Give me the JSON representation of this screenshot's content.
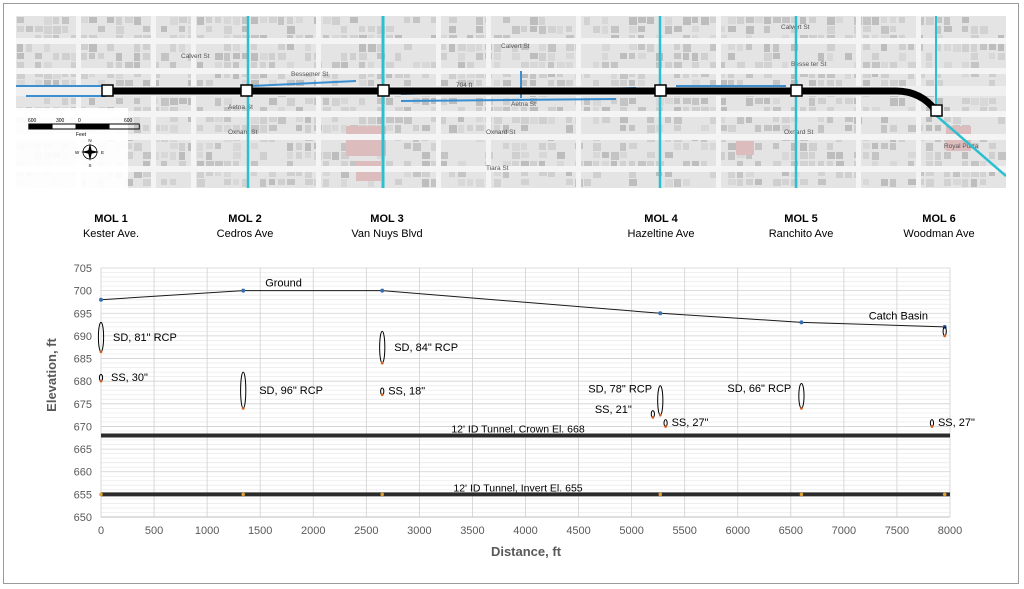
{
  "map": {
    "streets": [
      {
        "name": "Calvert St",
        "pos": "north-west"
      },
      {
        "name": "Calvert St",
        "pos": "north-center"
      },
      {
        "name": "Calvert St",
        "pos": "north-east"
      },
      {
        "name": "Bessemer St",
        "pos": "west"
      },
      {
        "name": "Besse ter St",
        "pos": "east"
      },
      {
        "name": "704 ft",
        "pos": "center"
      },
      {
        "name": "Aetna St",
        "pos": "west"
      },
      {
        "name": "Aetna St",
        "pos": "center"
      },
      {
        "name": "Oxnard St",
        "pos": "west"
      },
      {
        "name": "Oxnard St",
        "pos": "center"
      },
      {
        "name": "Oxnard St",
        "pos": "east"
      },
      {
        "name": "Tiara St",
        "pos": "center"
      },
      {
        "name": "Royal Pizza",
        "pos": "east"
      }
    ],
    "scale_bar": {
      "labels": [
        "600",
        "300",
        "0",
        "600"
      ],
      "unit": "Feet"
    },
    "north_arrow": {
      "n": "N",
      "s": "S",
      "e": "E",
      "w": "W",
      "icon": "compass-rose-icon"
    },
    "shafts": [
      "MOL 1",
      "MOL 2",
      "MOL 3",
      "MOL 4",
      "MOL 5",
      "MOL 6"
    ]
  },
  "shafts": [
    {
      "id": "MOL 1",
      "street": "Kester Ave."
    },
    {
      "id": "MOL 2",
      "street": "Cedros Ave"
    },
    {
      "id": "MOL 3",
      "street": "Van Nuys Blvd"
    },
    {
      "id": "MOL 4",
      "street": "Hazeltine Ave"
    },
    {
      "id": "MOL 5",
      "street": "Ranchito Ave"
    },
    {
      "id": "MOL 6",
      "street": "Woodman Ave"
    }
  ],
  "chart_data": {
    "type": "line",
    "xlabel": "Distance, ft",
    "ylabel": "Elevation, ft",
    "xlim": [
      0,
      8000
    ],
    "ylim": [
      650,
      705
    ],
    "xticks": [
      0,
      500,
      1000,
      1500,
      2000,
      2500,
      3000,
      3500,
      4000,
      4500,
      5000,
      5500,
      6000,
      6500,
      7000,
      7500,
      8000
    ],
    "yticks": [
      650,
      655,
      660,
      665,
      670,
      675,
      680,
      685,
      690,
      695,
      700,
      705
    ],
    "grid": true,
    "ground": {
      "label": "Ground",
      "x": [
        0,
        1340,
        2650,
        5270,
        6600,
        7950
      ],
      "y": [
        698,
        700,
        700,
        695,
        693,
        692
      ]
    },
    "tunnel_crown": {
      "label": "12' ID Tunnel, Crown El. 668",
      "y": 668
    },
    "tunnel_invert": {
      "label": "12' ID Tunnel, Invert El. 655",
      "y": 655
    },
    "utilities": [
      {
        "label": "SD, 81\" RCP",
        "x": 0,
        "top": 693,
        "bottom": 686.5
      },
      {
        "label": "SS, 30\"",
        "x": 0,
        "top": 681.5,
        "bottom": 680
      },
      {
        "label": "SD, 96\" RCP",
        "x": 1340,
        "top": 682,
        "bottom": 674
      },
      {
        "label": "SD, 84\" RCP",
        "x": 2650,
        "top": 691,
        "bottom": 684
      },
      {
        "label": "SS, 18\"",
        "x": 2650,
        "top": 678.5,
        "bottom": 677
      },
      {
        "label": "SD, 78\" RCP",
        "x": 5270,
        "top": 679,
        "bottom": 672.5
      },
      {
        "label": "SS, 21\"",
        "x": 5200,
        "top": 673.5,
        "bottom": 672
      },
      {
        "label": "SS, 27\"",
        "x": 5320,
        "top": 671.5,
        "bottom": 670
      },
      {
        "label": "SD, 66\" RCP",
        "x": 6600,
        "top": 679.5,
        "bottom": 674
      },
      {
        "label": "SS, 27\"",
        "x": 7830,
        "top": 671.5,
        "bottom": 670
      },
      {
        "label": "Catch Basin",
        "x": 7950,
        "top": 692,
        "bottom": 690
      }
    ]
  }
}
